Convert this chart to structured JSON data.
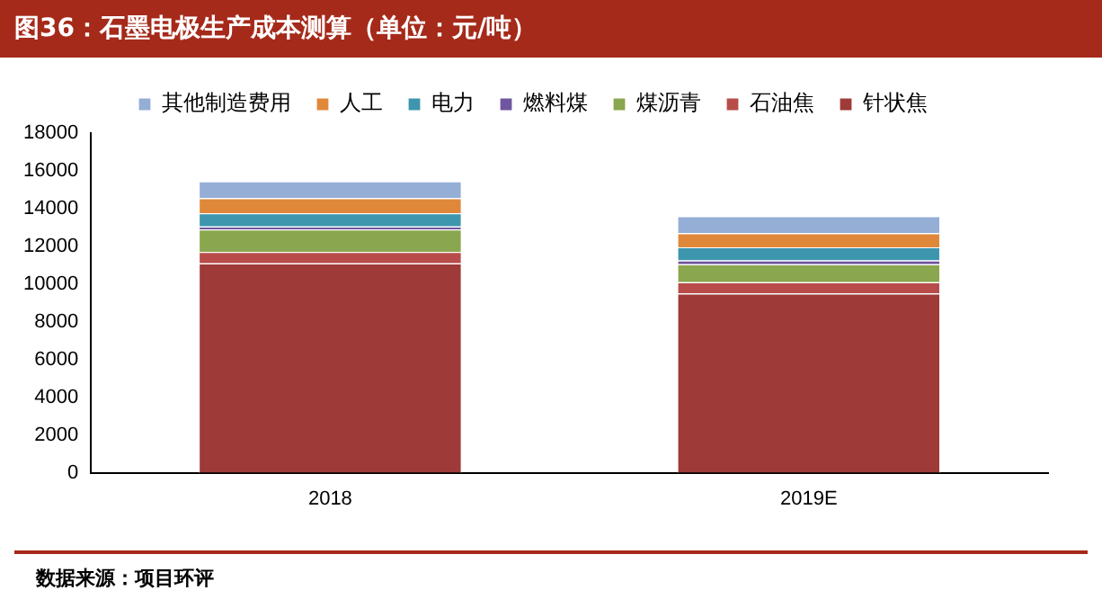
{
  "chart_data": {
    "type": "bar",
    "title": "图36：石墨电极生产成本测算（单位：元/吨）",
    "categories": [
      "2018",
      "2019E"
    ],
    "stacked": true,
    "series": [
      {
        "name": "针状焦",
        "color": "#9e3a38",
        "values": [
          11100,
          9500
        ]
      },
      {
        "name": "石油焦",
        "color": "#b84c4a",
        "values": [
          600,
          600
        ]
      },
      {
        "name": "煤沥青",
        "color": "#8aa64e",
        "values": [
          1200,
          950
        ]
      },
      {
        "name": "燃料煤",
        "color": "#7056a0",
        "values": [
          150,
          200
        ]
      },
      {
        "name": "电力",
        "color": "#3d96ae",
        "values": [
          700,
          700
        ]
      },
      {
        "name": "人工",
        "color": "#e0883a",
        "values": [
          800,
          750
        ]
      },
      {
        "name": "其他制造费用",
        "color": "#95aed6",
        "values": [
          900,
          900
        ]
      }
    ],
    "ylim": [
      0,
      18000
    ],
    "yticks": [
      0,
      2000,
      4000,
      6000,
      8000,
      10000,
      12000,
      14000,
      16000,
      18000
    ],
    "grid": false,
    "legend": "top",
    "annotations": [
      "数据来源：项目环评"
    ]
  }
}
